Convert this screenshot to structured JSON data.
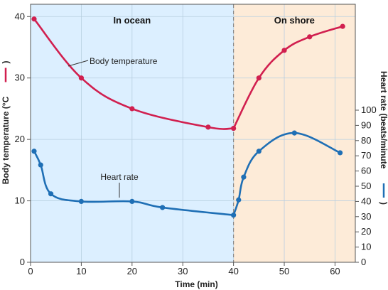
{
  "chart_data": {
    "type": "line",
    "xlabel": "Time (min)",
    "x_ticks": [
      "0",
      "10",
      "20",
      "30",
      "40",
      "50",
      "60"
    ],
    "xlim": [
      0,
      64
    ],
    "left_axis": {
      "label": "Body temperature (°C",
      "ticks": [
        "0",
        "10",
        "20",
        "30",
        "40"
      ],
      "ylim": [
        0,
        42
      ]
    },
    "right_axis": {
      "label": "Heart rate (beats/minute",
      "ticks": [
        "0",
        "10",
        "20",
        "30",
        "40",
        "50",
        "60",
        "70",
        "80",
        "90",
        "100"
      ],
      "ylim": [
        0,
        100
      ]
    },
    "regions": [
      {
        "label": "In ocean",
        "x_start": 0,
        "x_end": 40,
        "color": "#dcefff"
      },
      {
        "label": "On shore",
        "x_start": 40,
        "x_end": 64,
        "color": "#fdebd8"
      }
    ],
    "divider_x": 40,
    "grid": true,
    "series": [
      {
        "name": "Body temperature",
        "axis": "left",
        "color": "#d11f4f",
        "x": [
          0.7,
          10,
          20,
          35,
          40,
          45,
          50,
          55,
          61.5
        ],
        "y": [
          39.6,
          30,
          25,
          22,
          21.8,
          30,
          34.5,
          36.7,
          38.4
        ]
      },
      {
        "name": "Heart rate",
        "axis": "right",
        "color": "#1f6fb5",
        "x": [
          0.7,
          2,
          4,
          10,
          20,
          26,
          40,
          41,
          42,
          45,
          52,
          61
        ],
        "y": [
          73,
          64,
          45,
          40,
          40,
          36,
          31,
          41,
          56,
          73,
          85,
          72
        ]
      }
    ],
    "annotations": [
      {
        "text": "Body temperature",
        "series": "Body temperature"
      },
      {
        "text": "Heart rate",
        "series": "Heart rate"
      }
    ]
  }
}
